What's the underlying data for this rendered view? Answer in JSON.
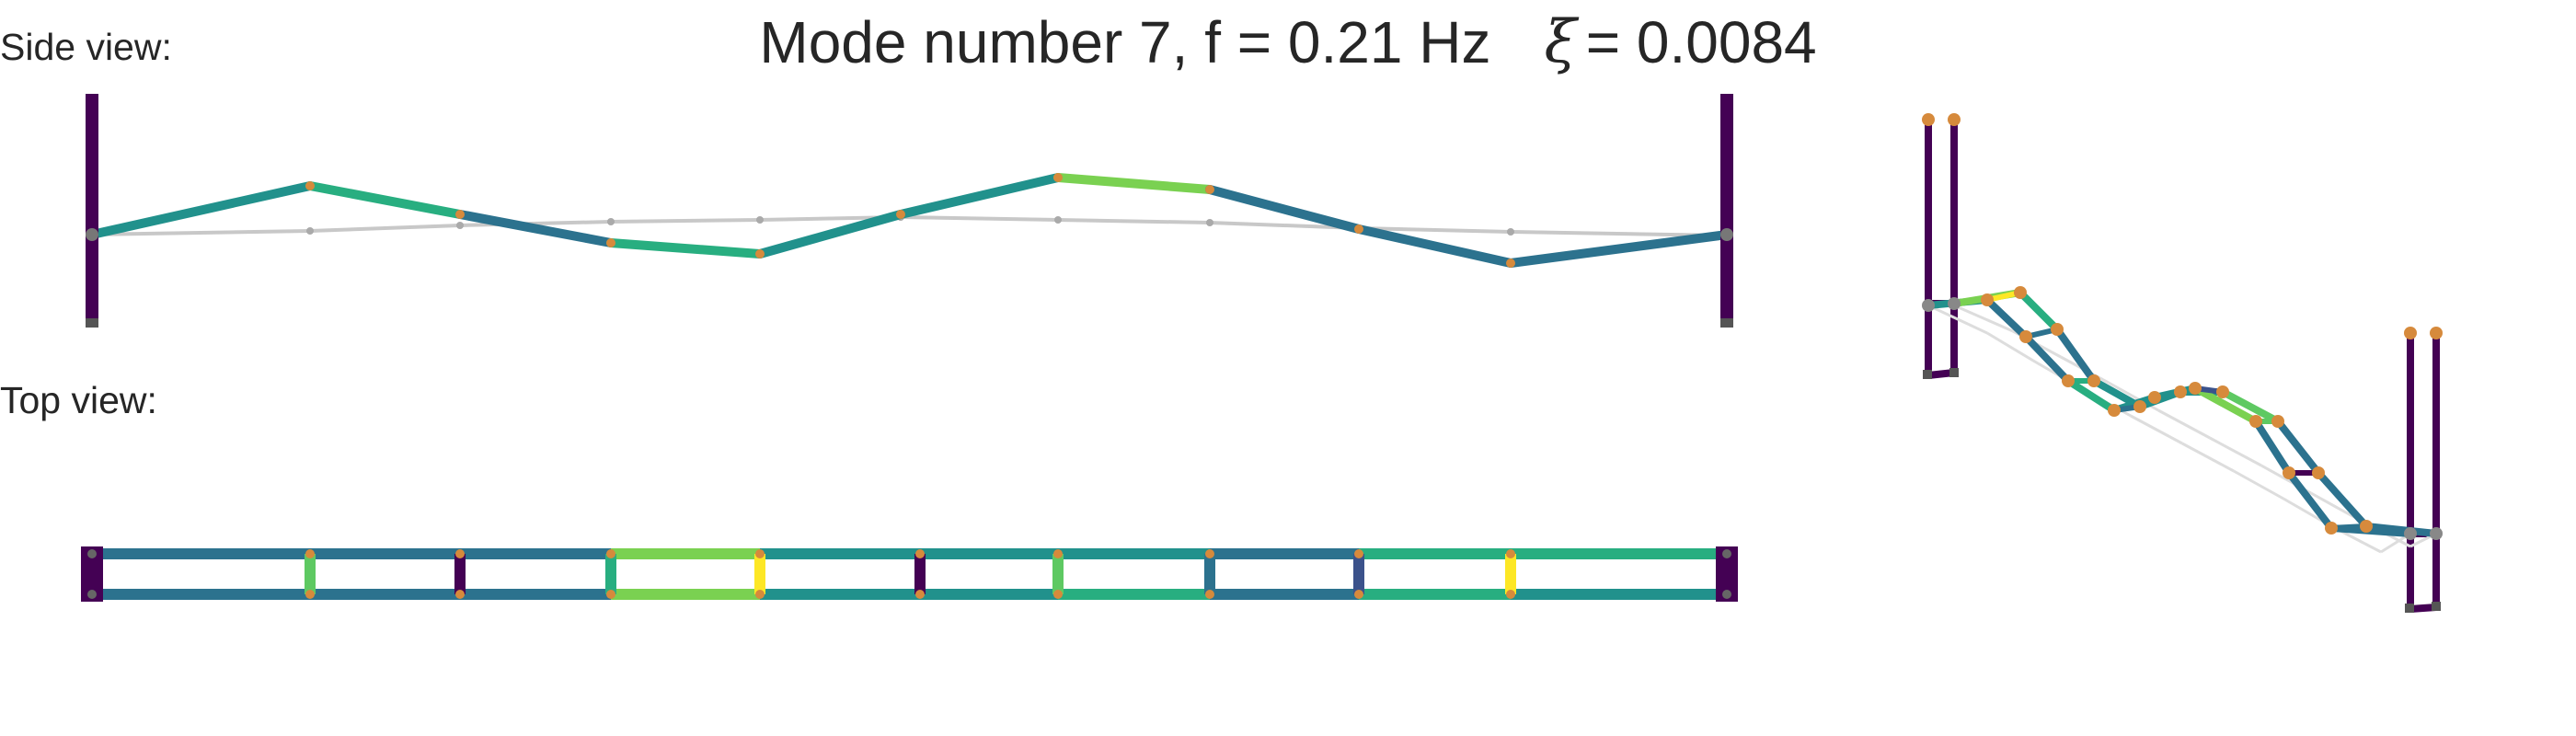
{
  "figure": {
    "title_prefix": "Mode number 7, f = 0.21 Hz",
    "xi_symbol": "ξ",
    "xi_value": "= 0.0084",
    "side_view_label": "Side view:",
    "top_view_label": "Top view:"
  },
  "colors": {
    "tower": "#440154",
    "undeformed": "#c8c8c8",
    "node_orange": "#d68a3c",
    "node_grey": "#888888",
    "viridis": [
      "#440154",
      "#3b528b",
      "#2c728e",
      "#21918c",
      "#28ae80",
      "#5ec962",
      "#7ad151",
      "#fde725"
    ]
  },
  "diagram": {
    "description_note": "",
    "span_count": 11,
    "side_deck_colors": [
      "#21918c",
      "#28ae80",
      "#2c728e",
      "#28ae80",
      "#21918c",
      "#21918c",
      "#7ad151",
      "#2c728e",
      "#2c728e",
      "#2c728e",
      "#21918c"
    ],
    "top_upper_colors": [
      "#2c728e",
      "#2c728e",
      "#2c728e",
      "#7ad151",
      "#21918c",
      "#21918c",
      "#21918c",
      "#2c728e",
      "#28ae80",
      "#28ae80",
      "#21918c"
    ],
    "top_lower_colors": [
      "#2c728e",
      "#2c728e",
      "#2c728e",
      "#7ad151",
      "#21918c",
      "#21918c",
      "#28ae80",
      "#2c728e",
      "#28ae80",
      "#21918c",
      "#21918c"
    ],
    "top_cross_colors": [
      "#440154",
      "#5ec962",
      "#440154",
      "#28ae80",
      "#fde725",
      "#440154",
      "#5ec962",
      "#2c728e",
      "#3b528b",
      "#fde725",
      "#440154"
    ]
  }
}
